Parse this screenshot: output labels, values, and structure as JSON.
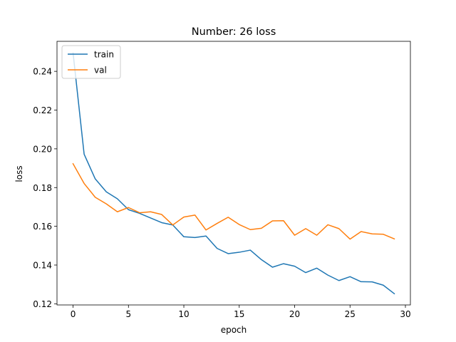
{
  "chart_data": {
    "type": "line",
    "title": "Number: 26 loss",
    "xlabel": "epoch",
    "ylabel": "loss",
    "xlim": [
      -1.45,
      30.45
    ],
    "ylim": [
      0.1194,
      0.2555
    ],
    "xticks": [
      0,
      5,
      10,
      15,
      20,
      25,
      30
    ],
    "yticks": [
      0.12,
      0.14,
      0.16,
      0.18,
      0.2,
      0.22,
      0.24
    ],
    "ytick_labels": [
      "0.12",
      "0.14",
      "0.16",
      "0.18",
      "0.20",
      "0.22",
      "0.24"
    ],
    "grid": false,
    "legend": "top-left",
    "x": [
      0,
      1,
      2,
      3,
      4,
      5,
      6,
      7,
      8,
      9,
      10,
      11,
      12,
      13,
      14,
      15,
      16,
      17,
      18,
      19,
      20,
      21,
      22,
      23,
      24,
      25,
      26,
      27,
      28,
      29
    ],
    "series": [
      {
        "name": "train",
        "color": "#1f77b4",
        "values": [
          0.2495,
          0.1972,
          0.1845,
          0.1778,
          0.1742,
          0.1686,
          0.1667,
          0.1643,
          0.1619,
          0.1607,
          0.1546,
          0.1542,
          0.155,
          0.1486,
          0.1459,
          0.1466,
          0.1477,
          0.1428,
          0.1389,
          0.1407,
          0.1394,
          0.1361,
          0.1384,
          0.1348,
          0.132,
          0.134,
          0.1314,
          0.1313,
          0.1296,
          0.1252
        ]
      },
      {
        "name": "val",
        "color": "#ff7f0e",
        "values": [
          0.1923,
          0.1821,
          0.175,
          0.1716,
          0.1675,
          0.1697,
          0.167,
          0.1675,
          0.1661,
          0.1607,
          0.1648,
          0.1658,
          0.1581,
          0.1615,
          0.1647,
          0.1609,
          0.1583,
          0.159,
          0.1628,
          0.1629,
          0.1554,
          0.1588,
          0.1554,
          0.1608,
          0.1588,
          0.1534,
          0.1573,
          0.1561,
          0.1559,
          0.1535
        ]
      }
    ]
  }
}
